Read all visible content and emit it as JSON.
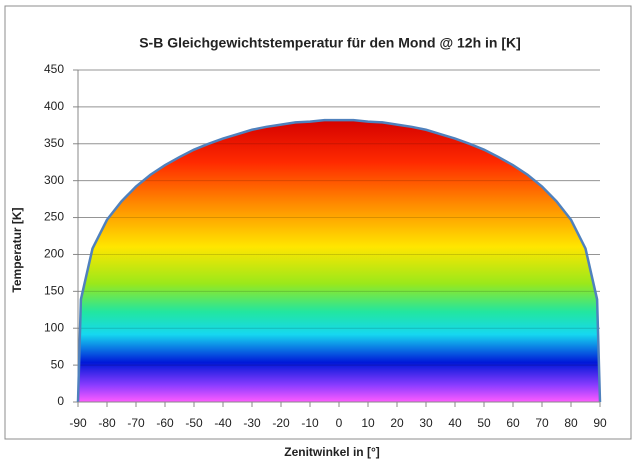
{
  "chart_data": {
    "type": "area",
    "title": "S-B Gleichgewichtstemperatur für den Mond @ 12h in [K]",
    "x_label": "Zenitwinkel in [°]",
    "y_label": "Temperatur [K]",
    "x": [
      -90,
      -89,
      -85,
      -80,
      -75,
      -70,
      -65,
      -60,
      -55,
      -50,
      -45,
      -40,
      -35,
      -30,
      -25,
      -20,
      -15,
      -10,
      -5,
      0,
      5,
      10,
      15,
      20,
      25,
      30,
      35,
      40,
      45,
      50,
      55,
      60,
      65,
      70,
      75,
      80,
      85,
      89,
      90
    ],
    "values": [
      0,
      139,
      208,
      247,
      272,
      292,
      308,
      321,
      332,
      342,
      350,
      357,
      363,
      369,
      373,
      376,
      379,
      380,
      382,
      382,
      382,
      380,
      379,
      376,
      373,
      369,
      363,
      357,
      350,
      342,
      332,
      321,
      308,
      292,
      272,
      247,
      208,
      139,
      0
    ],
    "color": "#4f81bd",
    "xlim": [
      -90,
      90
    ],
    "xticks": [
      -90,
      -80,
      -70,
      -60,
      -50,
      -40,
      -30,
      -20,
      -10,
      0,
      10,
      20,
      30,
      40,
      50,
      60,
      70,
      80,
      90
    ],
    "ylim": [
      0,
      450
    ],
    "yticks": [
      0,
      50,
      100,
      150,
      200,
      250,
      300,
      350,
      400,
      450
    ],
    "grid": true
  }
}
